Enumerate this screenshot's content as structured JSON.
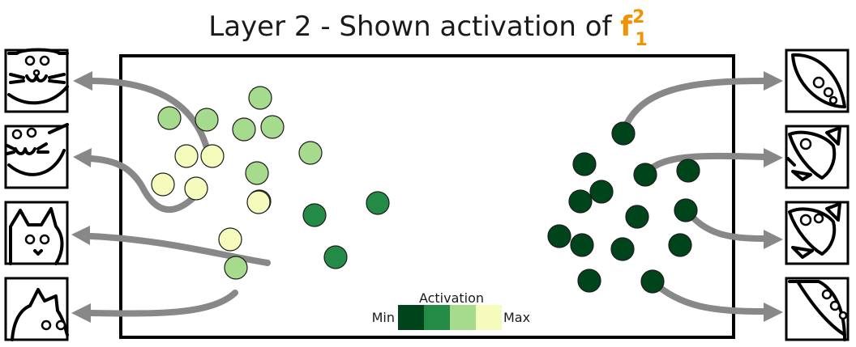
{
  "title": {
    "prefix": "Layer 2 - Shown activation of ",
    "feature_base": "f",
    "feature_sup": "2",
    "feature_sub": "1"
  },
  "legend": {
    "title": "Activation",
    "min_label": "Min",
    "max_label": "Max",
    "colors": [
      "#00441b",
      "#238b45",
      "#a6db8d",
      "#f5fbbd"
    ]
  },
  "colors": {
    "accent": "#f39200",
    "arrow": "#888888",
    "frame": "#000000"
  },
  "icons": {
    "left": [
      "cat-face-icon",
      "cat-face-tilted-icon",
      "cat-profile-icon",
      "cat-profile-corner-icon"
    ],
    "right": [
      "rocket-window-icon",
      "rocket-fins-icon",
      "rocket-fins-icon",
      "rocket-nose-icon"
    ]
  },
  "chart_data": {
    "type": "scatter",
    "activation_levels": [
      "min",
      "low",
      "high",
      "max"
    ],
    "points": [
      {
        "group": "cat",
        "level": "high"
      },
      {
        "group": "cat",
        "level": "high"
      },
      {
        "group": "cat",
        "level": "high"
      },
      {
        "group": "cat",
        "level": "high"
      },
      {
        "group": "cat",
        "level": "high"
      },
      {
        "group": "cat",
        "level": "high"
      },
      {
        "group": "cat",
        "level": "high"
      },
      {
        "group": "cat",
        "level": "high"
      },
      {
        "group": "cat",
        "level": "high"
      },
      {
        "group": "cat",
        "level": "max"
      },
      {
        "group": "cat",
        "level": "max"
      },
      {
        "group": "cat",
        "level": "max"
      },
      {
        "group": "cat",
        "level": "max"
      },
      {
        "group": "cat",
        "level": "max"
      },
      {
        "group": "cat",
        "level": "max"
      },
      {
        "group": "cat",
        "level": "low"
      },
      {
        "group": "cat",
        "level": "low"
      },
      {
        "group": "cat",
        "level": "low"
      },
      {
        "group": "rocket",
        "level": "min"
      },
      {
        "group": "rocket",
        "level": "min"
      },
      {
        "group": "rocket",
        "level": "min"
      },
      {
        "group": "rocket",
        "level": "min"
      },
      {
        "group": "rocket",
        "level": "min"
      },
      {
        "group": "rocket",
        "level": "min"
      },
      {
        "group": "rocket",
        "level": "min"
      },
      {
        "group": "rocket",
        "level": "min"
      },
      {
        "group": "rocket",
        "level": "min"
      },
      {
        "group": "rocket",
        "level": "min"
      },
      {
        "group": "rocket",
        "level": "min"
      },
      {
        "group": "rocket",
        "level": "min"
      },
      {
        "group": "rocket",
        "level": "min"
      },
      {
        "group": "rocket",
        "level": "min"
      }
    ]
  }
}
